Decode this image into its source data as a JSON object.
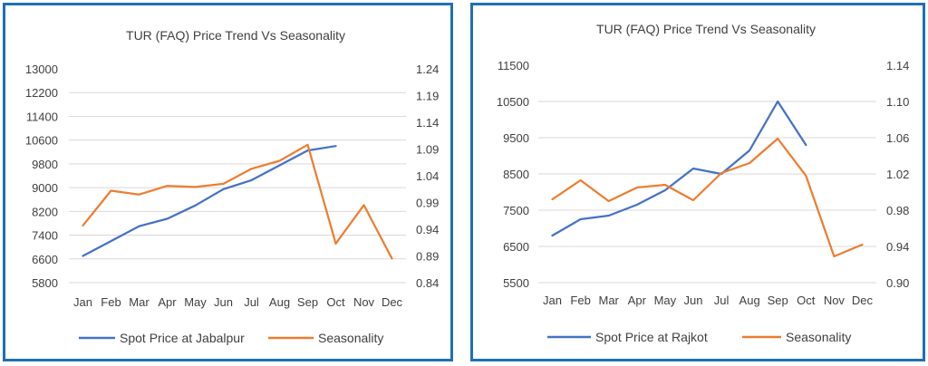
{
  "charts": [
    {
      "title": "TUR (FAQ) Price Trend Vs Seasonality",
      "left_ticks": [
        "13000",
        "12200",
        "11400",
        "10600",
        "9800",
        "9000",
        "8200",
        "7400",
        "6600",
        "5800"
      ],
      "right_ticks": [
        "1.24",
        "1.19",
        "1.14",
        "1.09",
        "1.04",
        "0.99",
        "0.94",
        "0.89",
        "0.84"
      ],
      "legend": [
        "Spot Price at Jabalpur",
        "Seasonality"
      ]
    },
    {
      "title": "TUR (FAQ) Price Trend Vs Seasonality",
      "left_ticks": [
        "11500",
        "10500",
        "9500",
        "8500",
        "7500",
        "6500",
        "5500"
      ],
      "right_ticks": [
        "1.14",
        "1.10",
        "1.06",
        "1.02",
        "0.98",
        "0.94",
        "0.90"
      ],
      "legend": [
        "Spot Price at Rajkot",
        "Seasonality"
      ]
    }
  ],
  "chart_data": [
    {
      "type": "line",
      "title": "TUR (FAQ) Price Trend Vs Seasonality",
      "categories": [
        "Jan",
        "Feb",
        "Mar",
        "Apr",
        "May",
        "Jun",
        "Jul",
        "Aug",
        "Sep",
        "Oct",
        "Nov",
        "Dec"
      ],
      "y_left_lim": [
        5800,
        13000
      ],
      "y_right_lim": [
        0.84,
        1.24
      ],
      "grid": true,
      "legend_position": "bottom",
      "series": [
        {
          "name": "Spot Price at Jabalpur",
          "axis": "left",
          "color": "#4472c4",
          "values": [
            6700,
            7200,
            7700,
            7950,
            8400,
            8950,
            9250,
            9750,
            10250,
            10400,
            null,
            null
          ]
        },
        {
          "name": "Seasonality",
          "axis": "right",
          "color": "#ed7d31",
          "values": [
            0.947,
            1.012,
            1.005,
            1.021,
            1.019,
            1.025,
            1.053,
            1.068,
            1.098,
            0.913,
            0.985,
            0.885
          ]
        }
      ]
    },
    {
      "type": "line",
      "title": "TUR (FAQ) Price Trend Vs Seasonality",
      "categories": [
        "Jan",
        "Feb",
        "Mar",
        "Apr",
        "May",
        "Jun",
        "Jul",
        "Aug",
        "Sep",
        "Oct",
        "Nov",
        "Dec"
      ],
      "y_left_lim": [
        5500,
        11500
      ],
      "y_right_lim": [
        0.9,
        1.14
      ],
      "grid": true,
      "legend_position": "bottom",
      "series": [
        {
          "name": "Spot Price at Rajkot",
          "axis": "left",
          "color": "#4472c4",
          "values": [
            6800,
            7250,
            7350,
            7650,
            8050,
            8650,
            8500,
            9150,
            10500,
            9300,
            null,
            null
          ]
        },
        {
          "name": "Seasonality",
          "axis": "right",
          "color": "#ed7d31",
          "values": [
            0.992,
            1.013,
            0.99,
            1.005,
            1.008,
            0.991,
            1.021,
            1.032,
            1.059,
            1.018,
            0.929,
            0.942
          ]
        }
      ]
    }
  ]
}
